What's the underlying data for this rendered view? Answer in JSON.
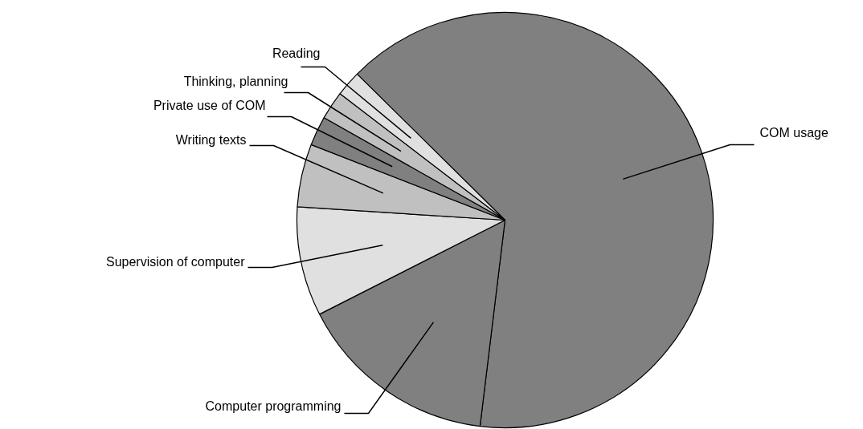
{
  "chart_data": {
    "type": "pie",
    "categories": [
      "COM usage",
      "Computer programming",
      "Supervision of computer",
      "Writing texts",
      "Private use of COM",
      "Thinking, planning",
      "Reading"
    ],
    "values": [
      64.5,
      15.6,
      8.5,
      4.9,
      2.3,
      2.2,
      2.0
    ],
    "colors": [
      "#808080",
      "#808080",
      "#e0e0e0",
      "#c0c0c0",
      "#808080",
      "#c0c0c0",
      "#e0e0e0"
    ],
    "legend": false
  }
}
